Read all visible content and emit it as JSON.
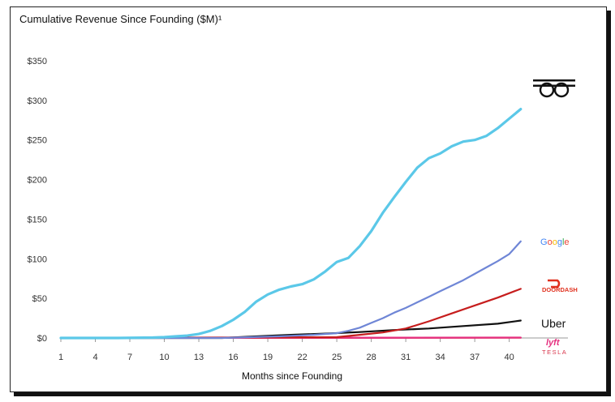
{
  "chart_data": {
    "type": "line",
    "title": "Cumulative Revenue Since Founding ($M)¹",
    "xlabel": "Months since Founding",
    "ylabel": "",
    "xlim": [
      1,
      42
    ],
    "ylim": [
      0,
      350
    ],
    "x_ticks": [
      "1",
      "4",
      "7",
      "10",
      "13",
      "16",
      "19",
      "22",
      "25",
      "28",
      "31",
      "34",
      "37",
      "40"
    ],
    "x_tick_values": [
      1,
      4,
      7,
      10,
      13,
      16,
      19,
      22,
      25,
      28,
      31,
      34,
      37,
      40
    ],
    "y_ticks": [
      "$0",
      "$50",
      "$100",
      "$150",
      "$200",
      "$250",
      "$300",
      "$350"
    ],
    "y_tick_values": [
      0,
      50,
      100,
      150,
      200,
      250,
      300,
      350
    ],
    "grid": false,
    "legend": "right-edge labels",
    "series": [
      {
        "brand": "bird-logo",
        "color": "#5bc8e8",
        "x": [
          1,
          6,
          9,
          10,
          11,
          12,
          13,
          14,
          15,
          16,
          17,
          18,
          19,
          20,
          21,
          22,
          23,
          24,
          25,
          26,
          27,
          28,
          29,
          30,
          31,
          32,
          33,
          34,
          35,
          36,
          37,
          38,
          39,
          40,
          41
        ],
        "y": [
          0,
          0,
          0.5,
          1,
          2,
          3,
          5,
          9,
          15,
          23,
          33,
          46,
          55,
          61,
          65,
          68,
          74,
          84,
          96,
          101,
          116,
          135,
          158,
          178,
          197,
          215,
          227,
          233,
          242,
          248,
          250,
          255,
          265,
          277,
          289
        ]
      },
      {
        "brand": "Google",
        "color": "#6f86d6",
        "x": [
          1,
          15,
          20,
          23,
          25,
          26,
          27,
          28,
          29,
          30,
          31,
          32,
          33,
          34,
          35,
          36,
          37,
          38,
          39,
          40,
          41
        ],
        "y": [
          0,
          0,
          2,
          4,
          6,
          9,
          13,
          19,
          25,
          32,
          38,
          45,
          52,
          59,
          66,
          73,
          81,
          89,
          97,
          106,
          122
        ]
      },
      {
        "brand": "DOORDASH",
        "color": "#c61d1d",
        "x": [
          1,
          25,
          27,
          29,
          31,
          33,
          35,
          37,
          39,
          41
        ],
        "y": [
          0,
          1,
          4,
          7,
          12,
          21,
          31,
          41,
          51,
          62
        ]
      },
      {
        "brand": "Uber",
        "color": "#111111",
        "x": [
          1,
          15,
          18,
          21,
          24,
          27,
          30,
          33,
          36,
          39,
          41
        ],
        "y": [
          0,
          0,
          2,
          4,
          5.5,
          7.5,
          10,
          12,
          15,
          18,
          22
        ]
      },
      {
        "brand": "lyft",
        "color": "#e5307f",
        "x": [
          1,
          41
        ],
        "y": [
          0,
          0.5
        ]
      },
      {
        "brand": "TESLA",
        "color": "#d8344a",
        "x": [
          1,
          41
        ],
        "y": [
          0,
          0.3
        ]
      }
    ],
    "labels": {
      "google": "Google",
      "doordash": "DOORDASH",
      "uber": "Uber",
      "lyft": "lyft",
      "tesla": "TESLA"
    }
  }
}
